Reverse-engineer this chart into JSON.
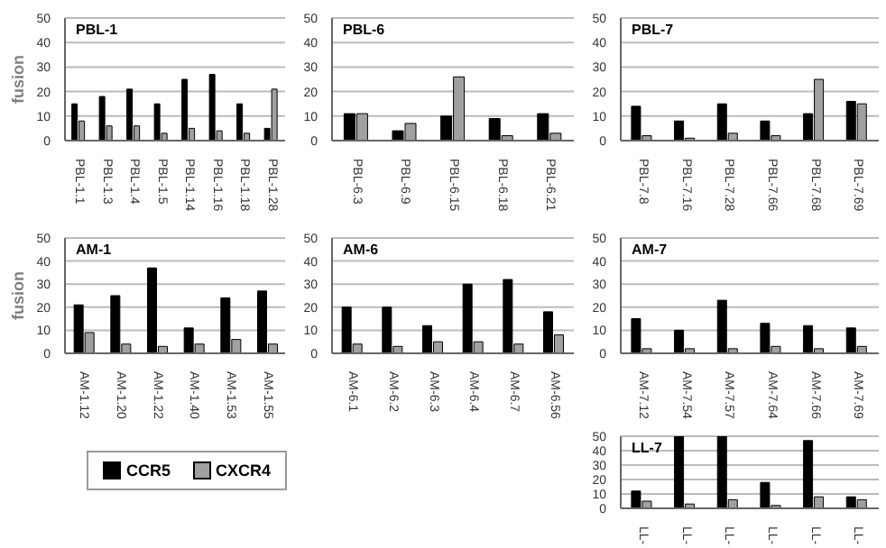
{
  "chart_data": [
    {
      "type": "bar",
      "title": "PBL-1",
      "ylabel": "fusion",
      "legend": "bottom",
      "categories": [
        "PBL-1.1",
        "PBL-1.3",
        "PBL-1.4",
        "PBL-1.5",
        "PBL-1.14",
        "PBL-1.16",
        "PBL-1.18",
        "PBL-1.28"
      ],
      "series": [
        {
          "name": "CCR5",
          "color": "#000000",
          "values": [
            15,
            18,
            21,
            15,
            25,
            27,
            15,
            5
          ]
        },
        {
          "name": "CXCR4",
          "color": "#a0a0a0",
          "values": [
            8,
            6,
            6,
            3,
            5,
            4,
            3,
            21
          ]
        }
      ],
      "ylim": [
        0,
        50
      ],
      "yticks": [
        0,
        10,
        20,
        30,
        40,
        50
      ],
      "grid": "y"
    },
    {
      "type": "bar",
      "title": "PBL-6",
      "categories": [
        "PBL-6.3",
        "PBL-6.9",
        "PBL-6.15",
        "PBL-6.18",
        "PBL-6.21"
      ],
      "series": [
        {
          "color": "#000000",
          "values": [
            11,
            4,
            10,
            9,
            11
          ]
        },
        {
          "color": "#a0a0a0",
          "values": [
            11,
            7,
            26,
            2,
            3
          ]
        }
      ],
      "ylim": [
        0,
        50
      ],
      "yticks": [
        0,
        10,
        20,
        30,
        40,
        50
      ],
      "grid": "y"
    },
    {
      "type": "bar",
      "title": "PBL-7",
      "categories": [
        "PBL-7.8",
        "PBL-7.16",
        "PBL-7.28",
        "PBL-7.66",
        "PBL-7.68",
        "PBL-7.69"
      ],
      "series": [
        {
          "color": "#000000",
          "values": [
            14,
            8,
            15,
            8,
            11,
            16
          ]
        },
        {
          "color": "#a0a0a0",
          "values": [
            2,
            1,
            3,
            2,
            25,
            15
          ]
        }
      ],
      "ylim": [
        0,
        50
      ],
      "yticks": [
        0,
        10,
        20,
        30,
        40,
        50
      ],
      "grid": "y"
    },
    {
      "type": "bar",
      "title": "AM-1",
      "ylabel": "fusion",
      "categories": [
        "AM-1.12",
        "AM-1.20",
        "AM-1.22",
        "AM-1.40",
        "AM-1.53",
        "AM-1.55"
      ],
      "series": [
        {
          "color": "#000000",
          "values": [
            21,
            25,
            37,
            11,
            24,
            27
          ]
        },
        {
          "color": "#a0a0a0",
          "values": [
            9,
            4,
            3,
            4,
            6,
            4
          ]
        }
      ],
      "ylim": [
        0,
        50
      ],
      "yticks": [
        0,
        10,
        20,
        30,
        40,
        50
      ],
      "grid": "y"
    },
    {
      "type": "bar",
      "title": "AM-6",
      "categories": [
        "AM-6.1",
        "AM-6.2",
        "AM-6.3",
        "AM-6.4",
        "AM-6.7",
        "AM-6.56"
      ],
      "series": [
        {
          "color": "#000000",
          "values": [
            20,
            20,
            12,
            30,
            32,
            18
          ]
        },
        {
          "color": "#a0a0a0",
          "values": [
            4,
            3,
            5,
            5,
            4,
            8
          ]
        }
      ],
      "ylim": [
        0,
        50
      ],
      "yticks": [
        0,
        10,
        20,
        30,
        40,
        50
      ],
      "grid": "y"
    },
    {
      "type": "bar",
      "title": "AM-7",
      "categories": [
        "AM-7.12",
        "AM-7.54",
        "AM-7.57",
        "AM-7.64",
        "AM-7.66",
        "AM-7.69"
      ],
      "series": [
        {
          "color": "#000000",
          "values": [
            15,
            10,
            23,
            13,
            12,
            11
          ]
        },
        {
          "color": "#a0a0a0",
          "values": [
            2,
            2,
            2,
            3,
            2,
            3
          ]
        }
      ],
      "ylim": [
        0,
        50
      ],
      "yticks": [
        0,
        10,
        20,
        30,
        40,
        50
      ],
      "grid": "y"
    },
    {
      "type": "bar",
      "title": "LL-7",
      "categories": [
        "LL-",
        "LL-",
        "LL-",
        "LL-",
        "LL-",
        "LL-"
      ],
      "series": [
        {
          "color": "#000000",
          "values": [
            12,
            50,
            50,
            18,
            47,
            8
          ]
        },
        {
          "color": "#a0a0a0",
          "values": [
            5,
            3,
            6,
            2,
            8,
            6
          ]
        }
      ],
      "ylim": [
        0,
        50
      ],
      "yticks": [
        0,
        10,
        20,
        30,
        40,
        50
      ],
      "grid": "y"
    }
  ]
}
